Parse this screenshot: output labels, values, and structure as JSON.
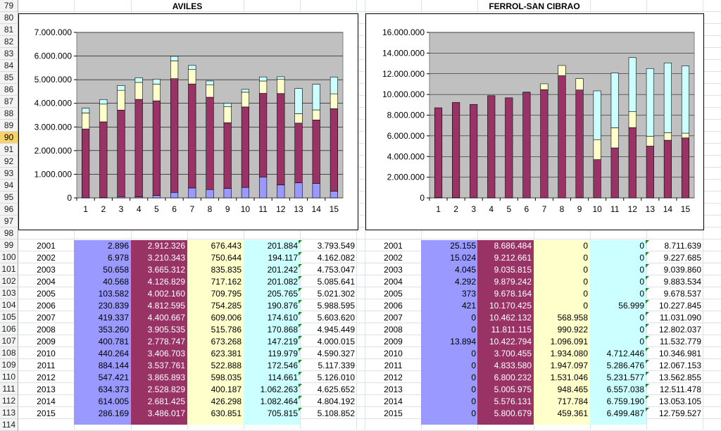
{
  "row_numbers": [
    "79",
    "80",
    "81",
    "82",
    "83",
    "84",
    "85",
    "86",
    "87",
    "88",
    "89",
    "90",
    "91",
    "92",
    "93",
    "94",
    "95",
    "96",
    "97",
    "98",
    "99",
    "100",
    "101",
    "102",
    "103",
    "104",
    "105",
    "106",
    "107",
    "108",
    "109",
    "110",
    "111",
    "112",
    "113",
    "114"
  ],
  "selected_row": "90",
  "colors": {
    "s1": "#9999ff",
    "s2": "#993366",
    "s3": "#ffffcc",
    "s4": "#ccffff",
    "plot_bg": "#c0c0c0"
  },
  "aviles": {
    "title": "AVILES",
    "chart_data": {
      "type": "bar",
      "stacked": true,
      "categories": [
        "1",
        "2",
        "3",
        "4",
        "5",
        "6",
        "7",
        "8",
        "9",
        "10",
        "11",
        "12",
        "13",
        "14",
        "15"
      ],
      "y_ticks": [
        "0",
        "1.000.000",
        "2.000.000",
        "3.000.000",
        "4.000.000",
        "5.000.000",
        "6.000.000",
        "7.000.000"
      ],
      "ylim": [
        0,
        7000000
      ],
      "series": [
        {
          "color": "#9999ff",
          "values": [
            2896,
            6978,
            50658,
            40568,
            103582,
            230839,
            419337,
            353260,
            400781,
            440264,
            884144,
            547421,
            634373,
            614005,
            286169
          ]
        },
        {
          "color": "#993366",
          "values": [
            2912326,
            3210343,
            3665312,
            4126829,
            4002160,
            4812595,
            4400667,
            3905535,
            2778747,
            3406703,
            3537761,
            3865893,
            2528829,
            2681425,
            3486017
          ]
        },
        {
          "color": "#ffffcc",
          "values": [
            676443,
            750644,
            835835,
            717162,
            709795,
            754285,
            609006,
            515786,
            673268,
            623381,
            522888,
            598035,
            400187,
            426298,
            630851
          ]
        },
        {
          "color": "#ccffff",
          "values": [
            201884,
            194117,
            201242,
            201082,
            205765,
            190876,
            174610,
            170868,
            147219,
            119979,
            172546,
            114661,
            1062263,
            1082464,
            705815
          ]
        }
      ],
      "grid": true,
      "legend": "none"
    },
    "table": [
      [
        "2001",
        "2.896",
        "2.912.326",
        "676.443",
        "201.884",
        "3.793.549"
      ],
      [
        "2002",
        "6.978",
        "3.210.343",
        "750.644",
        "194.117",
        "4.162.082"
      ],
      [
        "2003",
        "50.658",
        "3.665.312",
        "835.835",
        "201.242",
        "4.753.047"
      ],
      [
        "2004",
        "40.568",
        "4.126.829",
        "717.162",
        "201.082",
        "5.085.641"
      ],
      [
        "2005",
        "103.582",
        "4.002.160",
        "709.795",
        "205.765",
        "5.021.302"
      ],
      [
        "2006",
        "230.839",
        "4.812.595",
        "754.285",
        "190.876",
        "5.988.595"
      ],
      [
        "2007",
        "419.337",
        "4.400.667",
        "609.006",
        "174.610",
        "5.603.620"
      ],
      [
        "2008",
        "353.260",
        "3.905.535",
        "515.786",
        "170.868",
        "4.945.449"
      ],
      [
        "2009",
        "400.781",
        "2.778.747",
        "673.268",
        "147.219",
        "4.000.015"
      ],
      [
        "2010",
        "440.264",
        "3.406.703",
        "623.381",
        "119.979",
        "4.590.327"
      ],
      [
        "2011",
        "884.144",
        "3.537.761",
        "522.888",
        "172.546",
        "5.117.339"
      ],
      [
        "2012",
        "547.421",
        "3.865.893",
        "598.035",
        "114.661",
        "5.126.010"
      ],
      [
        "2013",
        "634.373",
        "2.528.829",
        "400.187",
        "1.062.263",
        "4.625.652"
      ],
      [
        "2014",
        "614.005",
        "2.681.425",
        "426.298",
        "1.082.464",
        "4.804.192"
      ],
      [
        "2015",
        "286.169",
        "3.486.017",
        "630.851",
        "705.815",
        "5.108.852"
      ]
    ]
  },
  "ferrol": {
    "title": "FERROL-SAN CIBRAO",
    "chart_data": {
      "type": "bar",
      "stacked": true,
      "categories": [
        "1",
        "2",
        "3",
        "4",
        "5",
        "6",
        "7",
        "8",
        "9",
        "10",
        "11",
        "12",
        "13",
        "14",
        "15"
      ],
      "y_ticks": [
        "0",
        "2.000.000",
        "4.000.000",
        "6.000.000",
        "8.000.000",
        "10.000.000",
        "12.000.000",
        "14.000.000",
        "16.000.000"
      ],
      "ylim": [
        0,
        16000000
      ],
      "series": [
        {
          "color": "#9999ff",
          "values": [
            25155,
            15024,
            4045,
            4292,
            373,
            421,
            0,
            0,
            13894,
            0,
            0,
            0,
            0,
            0,
            0
          ]
        },
        {
          "color": "#993366",
          "values": [
            8686484,
            9212661,
            9035815,
            9879242,
            9678164,
            10170425,
            10462132,
            11811115,
            10422794,
            3700455,
            4833580,
            6800232,
            5005975,
            5576131,
            5800679
          ]
        },
        {
          "color": "#ffffcc",
          "values": [
            0,
            0,
            0,
            0,
            0,
            0,
            568958,
            990922,
            1096091,
            1934080,
            1947097,
            1531046,
            948465,
            717784,
            459361
          ]
        },
        {
          "color": "#ccffff",
          "values": [
            0,
            0,
            0,
            0,
            0,
            56999,
            0,
            0,
            0,
            4712446,
            5286476,
            5231577,
            6557038,
            6759190,
            6499487
          ]
        }
      ],
      "grid": true,
      "legend": "none"
    },
    "table": [
      [
        "2001",
        "25.155",
        "8.686.484",
        "0",
        "0",
        "8.711.639"
      ],
      [
        "2002",
        "15.024",
        "9.212.661",
        "0",
        "0",
        "9.227.685"
      ],
      [
        "2003",
        "4.045",
        "9.035.815",
        "0",
        "0",
        "9.039.860"
      ],
      [
        "2004",
        "4.292",
        "9.879.242",
        "0",
        "0",
        "9.883.534"
      ],
      [
        "2005",
        "373",
        "9.678.164",
        "0",
        "0",
        "9.678.537"
      ],
      [
        "2006",
        "421",
        "10.170.425",
        "0",
        "56.999",
        "10.227.845"
      ],
      [
        "2007",
        "0",
        "10.462.132",
        "568.958",
        "0",
        "11.031.090"
      ],
      [
        "2008",
        "0",
        "11.811.115",
        "990.922",
        "0",
        "12.802.037"
      ],
      [
        "2009",
        "13.894",
        "10.422.794",
        "1.096.091",
        "0",
        "11.532.779"
      ],
      [
        "2010",
        "0",
        "3.700.455",
        "1.934.080",
        "4.712.446",
        "10.346.981"
      ],
      [
        "2011",
        "0",
        "4.833.580",
        "1.947.097",
        "5.286.476",
        "12.067.153"
      ],
      [
        "2012",
        "0",
        "6.800.232",
        "1.531.046",
        "5.231.577",
        "13.562.855"
      ],
      [
        "2013",
        "0",
        "5.005.975",
        "948.465",
        "6.557.038",
        "12.511.478"
      ],
      [
        "2014",
        "0",
        "5.576.131",
        "717.784",
        "6.759.190",
        "13.053.105"
      ],
      [
        "2015",
        "0",
        "5.800.679",
        "459.361",
        "6.499.487",
        "12.759.527"
      ]
    ]
  }
}
